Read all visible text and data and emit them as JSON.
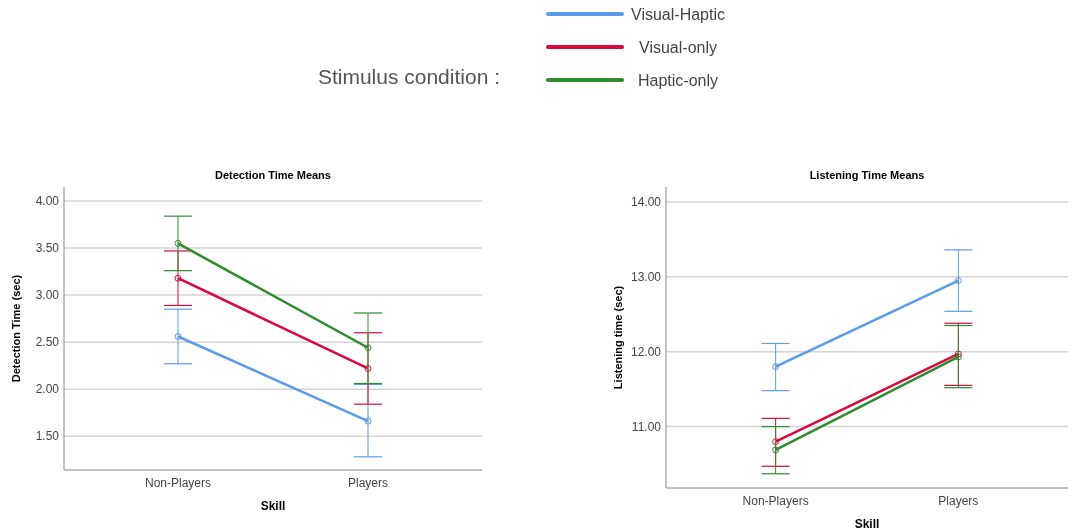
{
  "chart_data": [
    {
      "type": "line",
      "title": "Detection Time Means",
      "xlabel": "Skill",
      "ylabel": "Detection Time (sec)",
      "categories": [
        "Non-Players",
        "Players"
      ],
      "ylim": [
        1.14,
        4.15
      ],
      "yticks": [
        {
          "value": 1.5,
          "label": "1.50"
        },
        {
          "value": 2,
          "label": "2.00"
        },
        {
          "value": 2.5,
          "label": "2.50"
        },
        {
          "value": 3,
          "label": "3.00"
        },
        {
          "value": 3.5,
          "label": "3.50"
        },
        {
          "value": 4,
          "label": "4.00"
        }
      ],
      "grid": "y",
      "marker": "circle",
      "legend": "top",
      "legend_title": "Stimulus condition :",
      "series": [
        {
          "name": "Visual-Haptic",
          "color": "#5b9bea",
          "values": [
            2.56,
            1.66
          ],
          "errors": [
            [
              2.27,
              2.85
            ],
            [
              1.28,
              2.05
            ]
          ]
        },
        {
          "name": "Visual-only",
          "color": "#d9083d",
          "values": [
            3.18,
            2.22
          ],
          "errors": [
            [
              2.89,
              3.47
            ],
            [
              1.84,
              2.6
            ]
          ]
        },
        {
          "name": "Haptic-only",
          "color": "#2e8b2e",
          "values": [
            3.55,
            2.44
          ],
          "errors": [
            [
              3.26,
              3.84
            ],
            [
              2.06,
              2.81
            ]
          ]
        }
      ]
    },
    {
      "type": "line",
      "title": "Listening Time Means",
      "xlabel": "Skill",
      "ylabel": "Listening time (sec)",
      "categories": [
        "Non-Players",
        "Players"
      ],
      "ylim": [
        10.18,
        14.2
      ],
      "yticks": [
        {
          "value": 11,
          "label": "11.00"
        },
        {
          "value": 12,
          "label": "12.00"
        },
        {
          "value": 13,
          "label": "13.00"
        },
        {
          "value": 14,
          "label": "14.00"
        }
      ],
      "grid": "y",
      "marker": "circle",
      "series": [
        {
          "color": "#5b9bea",
          "values": [
            11.8,
            12.95
          ],
          "errors": [
            [
              11.48,
              12.11
            ],
            [
              12.54,
              13.36
            ]
          ]
        },
        {
          "color": "#d9083d",
          "values": [
            10.8,
            11.97
          ],
          "errors": [
            [
              10.47,
              11.11
            ],
            [
              11.55,
              12.38
            ]
          ]
        },
        {
          "color": "#2e8b2e",
          "values": [
            10.69,
            11.93
          ],
          "errors": [
            [
              10.37,
              11.0
            ],
            [
              11.52,
              12.35
            ]
          ]
        }
      ]
    }
  ]
}
